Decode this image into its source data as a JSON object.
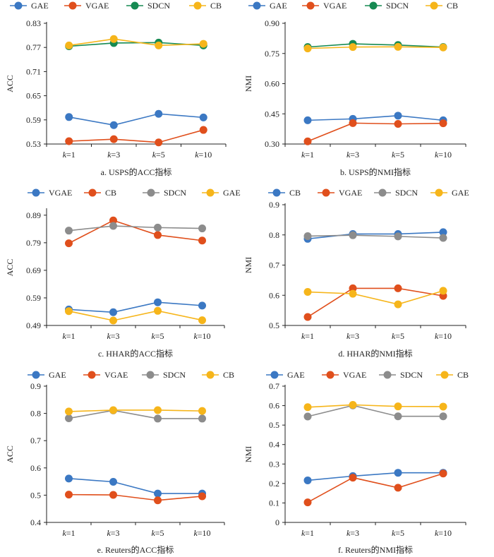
{
  "colors": {
    "blue": "#3b78c3",
    "red": "#e04f1c",
    "gray": "#8c8c8c",
    "green": "#168a52",
    "orange": "#f6b51a",
    "axis": "#222222",
    "tick_text": "#222222"
  },
  "chart_data": [
    {
      "id": "a",
      "type": "line",
      "title": "",
      "caption": "a.  USPS的ACC指标",
      "xlabel": "",
      "ylabel": "ACC",
      "categories": [
        "k=1",
        "k=3",
        "k=5",
        "k=10"
      ],
      "ylim": [
        0.53,
        0.83
      ],
      "yticks": [
        "0.53",
        "0.59",
        "0.65",
        "0.71",
        "0.77",
        "0.83"
      ],
      "legend_position": "top",
      "grid": false,
      "series": [
        {
          "name": "GAE",
          "color": "blue",
          "values": [
            0.597,
            0.577,
            0.605,
            0.596
          ]
        },
        {
          "name": "VGAE",
          "color": "red",
          "values": [
            0.537,
            0.542,
            0.534,
            0.565
          ]
        },
        {
          "name": "SDCN",
          "color": "green",
          "values": [
            0.773,
            0.781,
            0.782,
            0.775
          ]
        },
        {
          "name": "CB",
          "color": "orange",
          "values": [
            0.775,
            0.791,
            0.775,
            0.779
          ]
        }
      ]
    },
    {
      "id": "b",
      "type": "line",
      "title": "",
      "caption": "b.  USPS的NMI指标",
      "xlabel": "",
      "ylabel": "NMI",
      "categories": [
        "k=1",
        "k=3",
        "k=5",
        "k=10"
      ],
      "ylim": [
        0.3,
        0.9
      ],
      "yticks": [
        "0.30",
        "0.45",
        "0.60",
        "0.75",
        "0.90"
      ],
      "legend_position": "top",
      "grid": false,
      "series": [
        {
          "name": "GAE",
          "color": "blue",
          "values": [
            0.418,
            0.425,
            0.441,
            0.418
          ]
        },
        {
          "name": "VGAE",
          "color": "red",
          "values": [
            0.313,
            0.404,
            0.4,
            0.403
          ]
        },
        {
          "name": "SDCN",
          "color": "green",
          "values": [
            0.782,
            0.798,
            0.792,
            0.782
          ]
        },
        {
          "name": "CB",
          "color": "orange",
          "values": [
            0.775,
            0.782,
            0.783,
            0.78
          ]
        }
      ]
    },
    {
      "id": "c",
      "type": "line",
      "title": "",
      "caption": "c.  HHAR的ACC指标",
      "xlabel": "",
      "ylabel": "ACC",
      "categories": [
        "k=1",
        "k=3",
        "k=5",
        "k=10"
      ],
      "ylim": [
        0.49,
        0.91
      ],
      "yticks": [
        "0.49",
        "0.59",
        "0.69",
        "0.79",
        "0.89"
      ],
      "legend_position": "top",
      "grid": false,
      "series": [
        {
          "name": "VGAE",
          "color": "blue",
          "values": [
            0.548,
            0.538,
            0.574,
            0.562
          ]
        },
        {
          "name": "CB",
          "color": "red",
          "values": [
            0.788,
            0.871,
            0.818,
            0.798
          ]
        },
        {
          "name": "SDCN",
          "color": "gray",
          "values": [
            0.834,
            0.851,
            0.845,
            0.842
          ]
        },
        {
          "name": "GAE",
          "color": "orange",
          "values": [
            0.542,
            0.508,
            0.543,
            0.509
          ]
        }
      ]
    },
    {
      "id": "d",
      "type": "line",
      "title": "",
      "caption": "d.  HHAR的NMI指标",
      "xlabel": "",
      "ylabel": "NMI",
      "categories": [
        "k=1",
        "k=3",
        "k=5",
        "k=10"
      ],
      "ylim": [
        0.5,
        0.9
      ],
      "yticks": [
        "0.5",
        "0.6",
        "0.7",
        "0.8",
        "0.9"
      ],
      "legend_position": "top",
      "grid": false,
      "series": [
        {
          "name": "CB",
          "color": "blue",
          "values": [
            0.787,
            0.803,
            0.803,
            0.809
          ]
        },
        {
          "name": "VGAE",
          "color": "red",
          "values": [
            0.528,
            0.623,
            0.623,
            0.598
          ]
        },
        {
          "name": "SDCN",
          "color": "gray",
          "values": [
            0.796,
            0.799,
            0.795,
            0.79
          ]
        },
        {
          "name": "GAE",
          "color": "orange",
          "values": [
            0.611,
            0.605,
            0.57,
            0.615
          ]
        }
      ]
    },
    {
      "id": "e",
      "type": "line",
      "title": "",
      "caption": "e.  Reuters的ACC指标",
      "xlabel": "",
      "ylabel": "ACC",
      "categories": [
        "k=1",
        "k=3",
        "k=5",
        "k=10"
      ],
      "ylim": [
        0.4,
        0.9
      ],
      "yticks": [
        "0.4",
        "0.5",
        "0.6",
        "0.7",
        "0.8",
        "0.9"
      ],
      "legend_position": "top",
      "grid": false,
      "series": [
        {
          "name": "GAE",
          "color": "blue",
          "values": [
            0.561,
            0.549,
            0.506,
            0.506
          ]
        },
        {
          "name": "VGAE",
          "color": "red",
          "values": [
            0.502,
            0.501,
            0.481,
            0.496
          ]
        },
        {
          "name": "SDCN",
          "color": "gray",
          "values": [
            0.782,
            0.811,
            0.781,
            0.781
          ]
        },
        {
          "name": "CB",
          "color": "orange",
          "values": [
            0.807,
            0.812,
            0.812,
            0.809
          ]
        }
      ]
    },
    {
      "id": "f",
      "type": "line",
      "title": "",
      "caption": "f.  Reuters的NMI指标",
      "xlabel": "",
      "ylabel": "NMI",
      "categories": [
        "k=1",
        "k=3",
        "k=5",
        "k=10"
      ],
      "ylim": [
        0,
        0.7
      ],
      "yticks": [
        "0",
        "0.1",
        "0.2",
        "0.3",
        "0.4",
        "0.5",
        "0.6",
        "0.7"
      ],
      "legend_position": "top",
      "grid": false,
      "series": [
        {
          "name": "GAE",
          "color": "blue",
          "values": [
            0.216,
            0.238,
            0.255,
            0.255
          ]
        },
        {
          "name": "VGAE",
          "color": "red",
          "values": [
            0.103,
            0.23,
            0.178,
            0.251
          ]
        },
        {
          "name": "SDCN",
          "color": "gray",
          "values": [
            0.544,
            0.601,
            0.545,
            0.545
          ]
        },
        {
          "name": "CB",
          "color": "orange",
          "values": [
            0.592,
            0.604,
            0.596,
            0.595
          ]
        }
      ]
    }
  ]
}
